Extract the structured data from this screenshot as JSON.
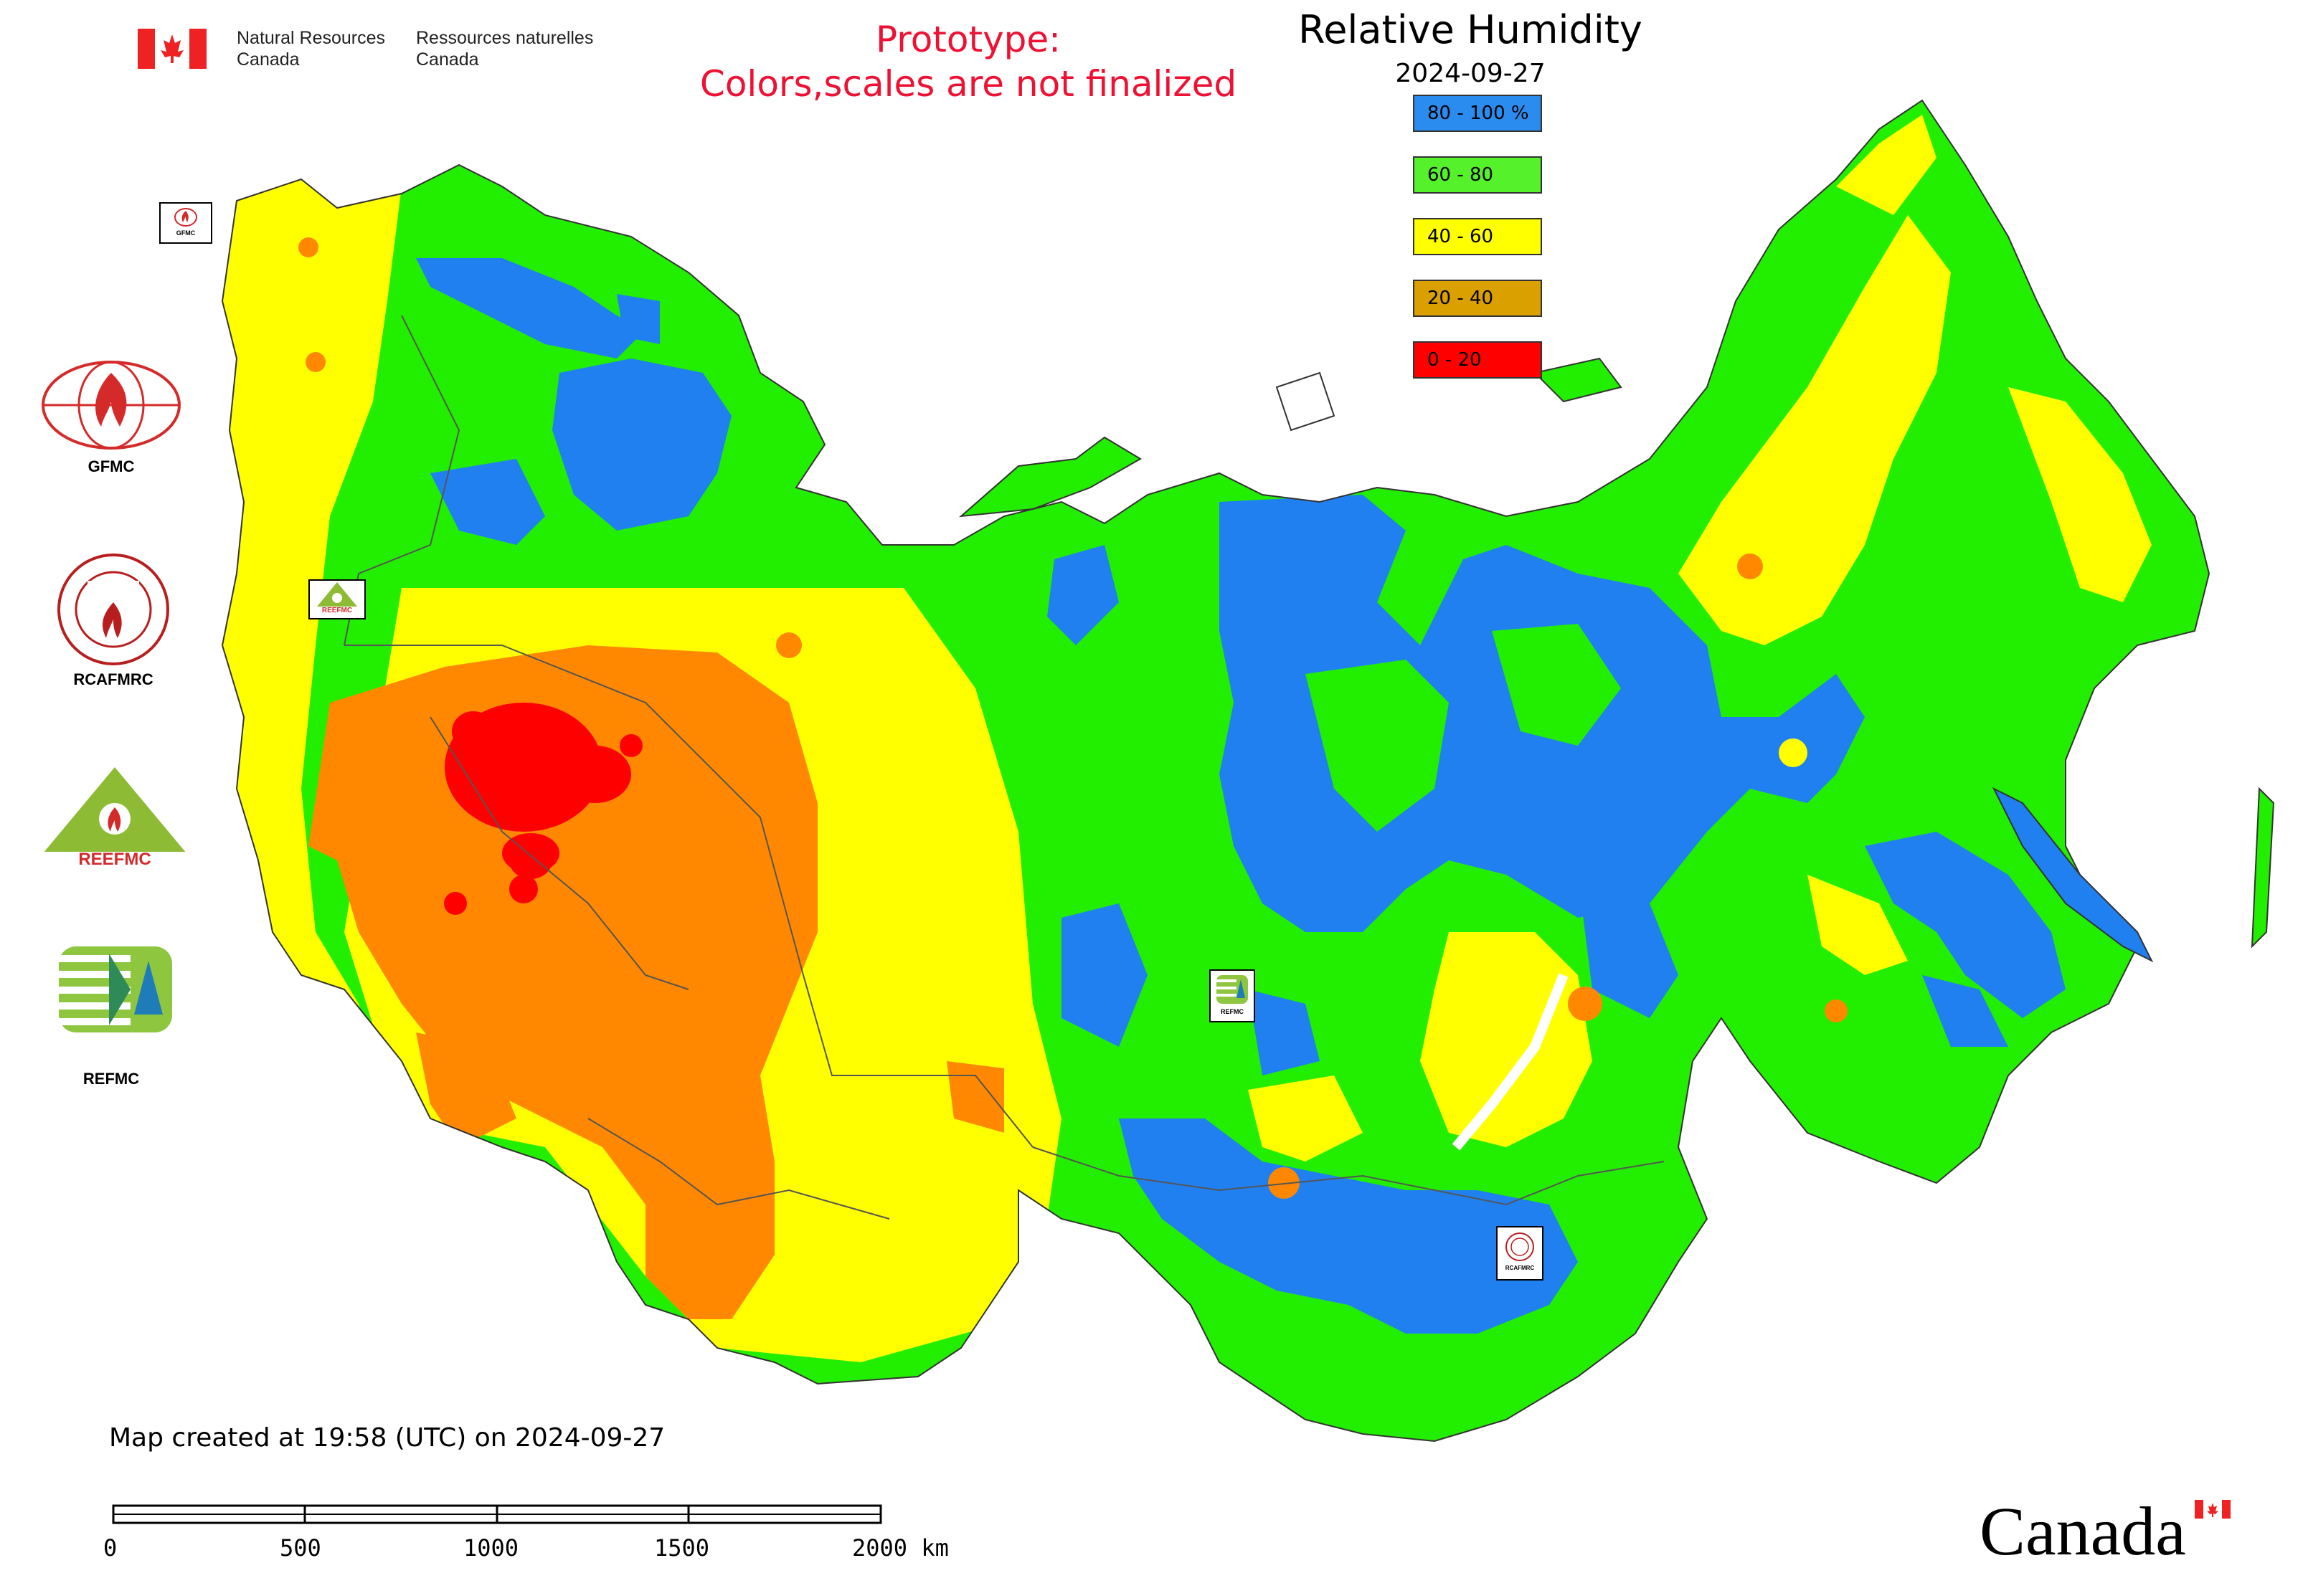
{
  "header": {
    "org_en_line1": "Natural Resources",
    "org_en_line2": "Canada",
    "org_fr_line1": "Ressources naturelles",
    "org_fr_line2": "Canada",
    "prototype_line1": "Prototype:",
    "prototype_line2": "Colors,scales are not finalized"
  },
  "title": "Relative Humidity",
  "date": "2024-09-27",
  "legend": [
    {
      "label": "80 - 100 %",
      "color": "#2b8cf0"
    },
    {
      "label": "60 - 80",
      "color": "#55f22c"
    },
    {
      "label": "40 - 60",
      "color": "#ffff00"
    },
    {
      "label": "20 - 40",
      "color": "#d9a000"
    },
    {
      "label": "0 - 20",
      "color": "#ff0000"
    }
  ],
  "colors": {
    "humid_80_100": "#2080f0",
    "humid_60_80": "#22ee00",
    "humid_40_60": "#ffff00",
    "humid_20_40": "#ff8800",
    "humid_0_20": "#ff0000",
    "prototype_text": "#ee1133"
  },
  "logos": {
    "gfmc": "GFMC",
    "rcafmrc": "RCAFMRC",
    "reefmc": "REEFMC",
    "refmc": "REFMC",
    "gfmc_small": "GFMC",
    "reefmc_small": "REEFMC",
    "refmc_small": "REFMC",
    "rcafmrc_small": "RCAFMRC"
  },
  "footer": {
    "created": "Map created at 19:58 (UTC) on 2024-09-27",
    "scale_ticks": [
      "0",
      "500",
      "1000",
      "1500",
      "2000 km"
    ],
    "wordmark": "Canada"
  }
}
